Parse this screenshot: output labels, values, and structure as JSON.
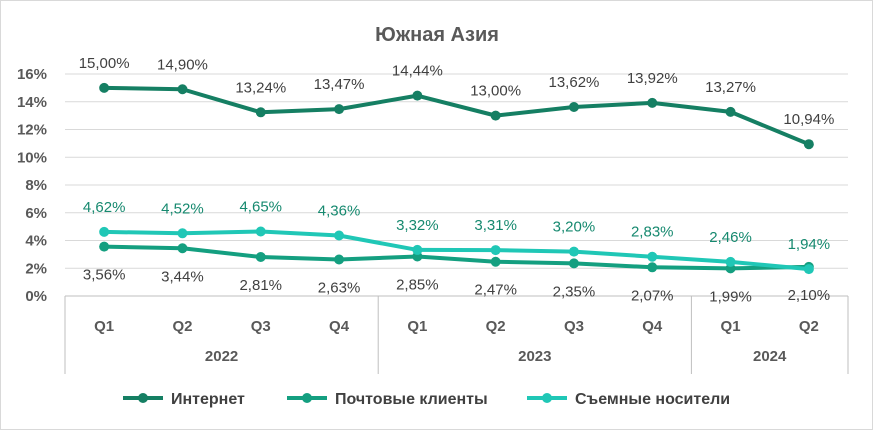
{
  "chart_data": {
    "type": "line",
    "title": "Южная Азия",
    "ylim": [
      0,
      16
    ],
    "y_ticks": [
      "0%",
      "2%",
      "4%",
      "6%",
      "8%",
      "10%",
      "12%",
      "14%",
      "16%"
    ],
    "grid": true,
    "legend_position": "bottom",
    "quarters": [
      "Q1",
      "Q2",
      "Q3",
      "Q4",
      "Q1",
      "Q2",
      "Q3",
      "Q4",
      "Q1",
      "Q2"
    ],
    "years": [
      {
        "label": "2022",
        "span": 4
      },
      {
        "label": "2023",
        "span": 4
      },
      {
        "label": "2024",
        "span": 2
      }
    ],
    "series": [
      {
        "name": "Интернет",
        "color": "#157f63",
        "values": [
          15.0,
          14.9,
          13.24,
          13.47,
          14.44,
          13.0,
          13.62,
          13.92,
          13.27,
          10.94
        ],
        "labels": [
          "15,00%",
          "14,90%",
          "13,24%",
          "13,47%",
          "14,44%",
          "13,00%",
          "13,62%",
          "13,92%",
          "13,27%",
          "10,94%"
        ]
      },
      {
        "name": "Почтовые клиенты",
        "color": "#149f80",
        "values": [
          3.56,
          3.44,
          2.81,
          2.63,
          2.85,
          2.47,
          2.35,
          2.07,
          1.99,
          2.1
        ],
        "labels": [
          "3,56%",
          "3,44%",
          "2,81%",
          "2,63%",
          "2,85%",
          "2,47%",
          "2,35%",
          "2,07%",
          "1,99%",
          "2,10%"
        ]
      },
      {
        "name": "Съемные носители",
        "color": "#20c7b6",
        "values": [
          4.62,
          4.52,
          4.65,
          4.36,
          3.32,
          3.31,
          3.2,
          2.83,
          2.46,
          1.94
        ],
        "labels": [
          "4,62%",
          "4,52%",
          "4,65%",
          "4,36%",
          "3,32%",
          "3,31%",
          "3,20%",
          "2,83%",
          "2,46%",
          "1,94%"
        ]
      }
    ]
  }
}
